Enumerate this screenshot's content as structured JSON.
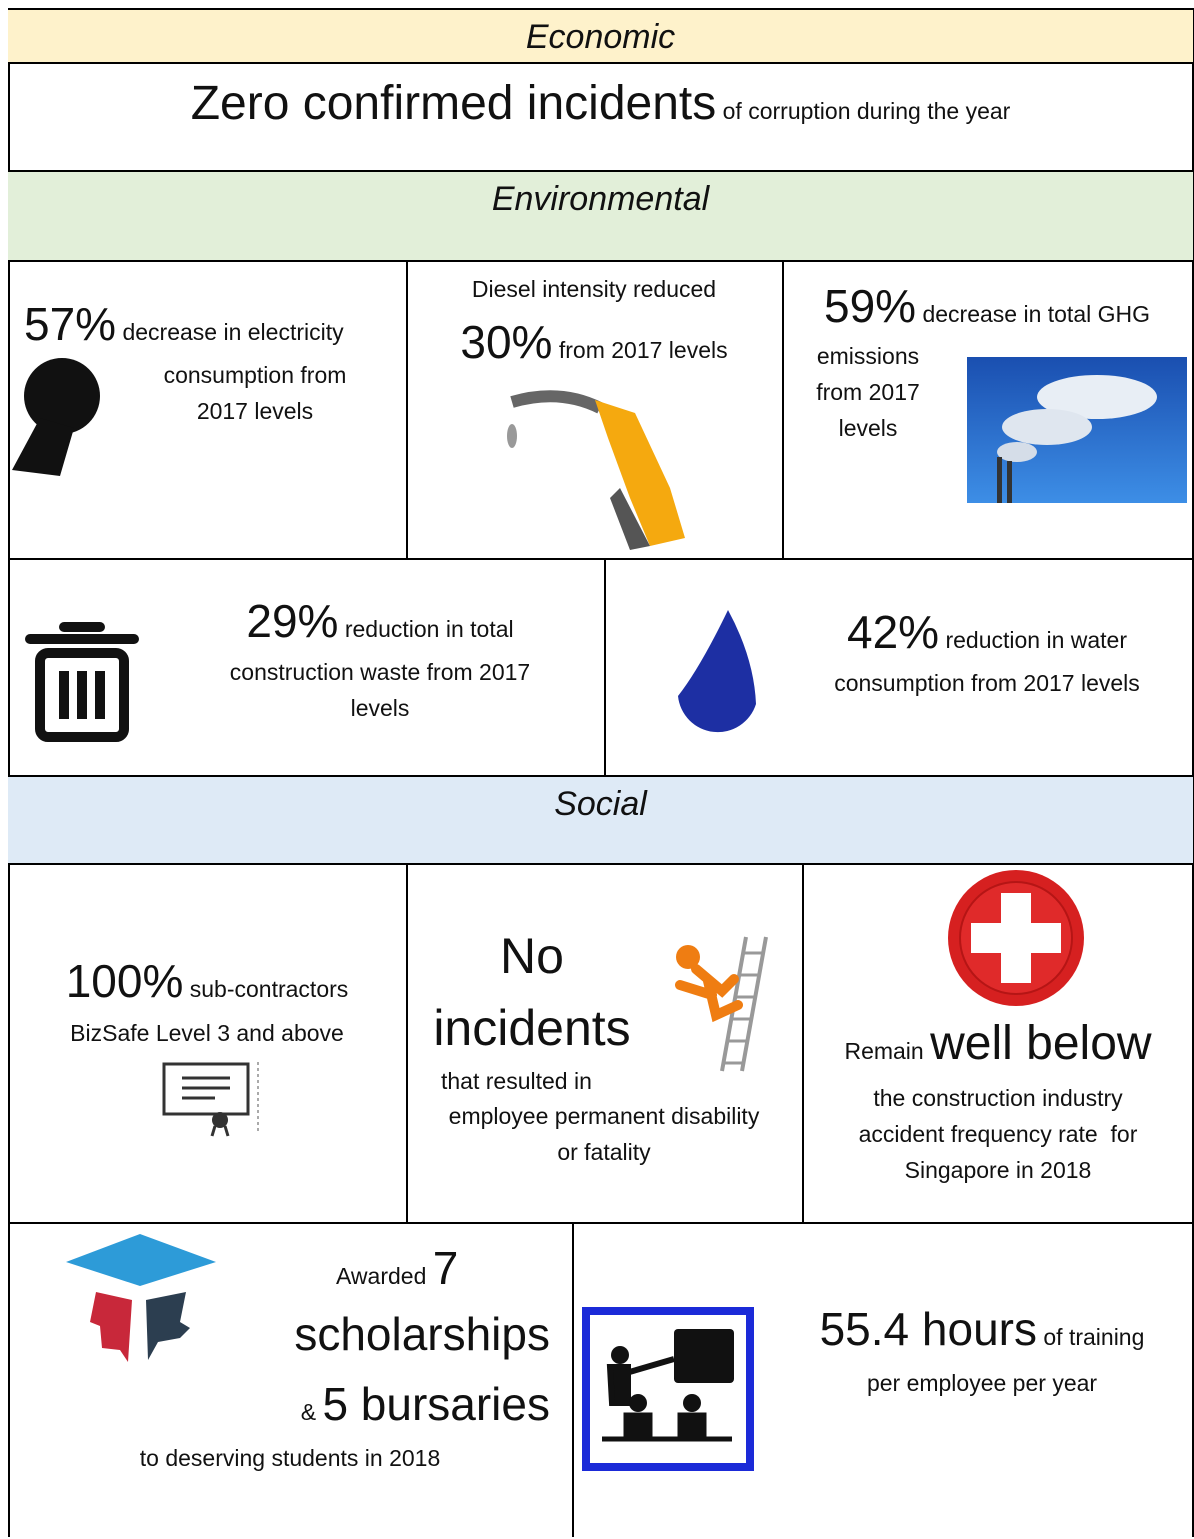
{
  "economic": {
    "heading": "Economic",
    "lead": "Zero confirmed incidents",
    "text": "of corruption during the year"
  },
  "environmental": {
    "heading": "Environmental",
    "electricity": {
      "figure": "57%",
      "lines": [
        "decrease in electricity",
        "consumption from",
        "2017 levels"
      ]
    },
    "diesel": {
      "intro": "Diesel intensity reduced",
      "figure": "30%",
      "lines": [
        "from 2017 levels"
      ]
    },
    "ghg": {
      "figure": "59%",
      "lines": [
        "decrease in total GHG",
        "emissions",
        "from 2017",
        "levels"
      ]
    },
    "waste": {
      "figure": "29%",
      "lines": [
        "reduction in total",
        "construction waste from 2017",
        "levels"
      ]
    },
    "water": {
      "figure": "42%",
      "lines": [
        "reduction in water",
        "consumption from 2017 levels"
      ]
    }
  },
  "social": {
    "heading": "Social",
    "bizsafe": {
      "figure": "100%",
      "lines": [
        "sub-contractors",
        "BizSafe Level 3 and above"
      ]
    },
    "incidents": {
      "figure": [
        "No",
        "incidents"
      ],
      "lines": [
        "that resulted in",
        "employee permanent disability",
        "or fatality"
      ]
    },
    "frequency": {
      "prefix": "Remain",
      "figure": "well below",
      "lines": [
        "the construction industry",
        "accident frequency rate  for",
        "Singapore in 2018"
      ]
    },
    "scholarships": {
      "prefix": "Awarded",
      "count": "7",
      "scholarships": "scholarships",
      "amp": "&",
      "bursaries": "5 bursaries",
      "text": "to deserving students in 2018"
    },
    "training": {
      "figure": "55.4 hours",
      "lines": [
        "of training",
        "per employee per year"
      ]
    }
  }
}
